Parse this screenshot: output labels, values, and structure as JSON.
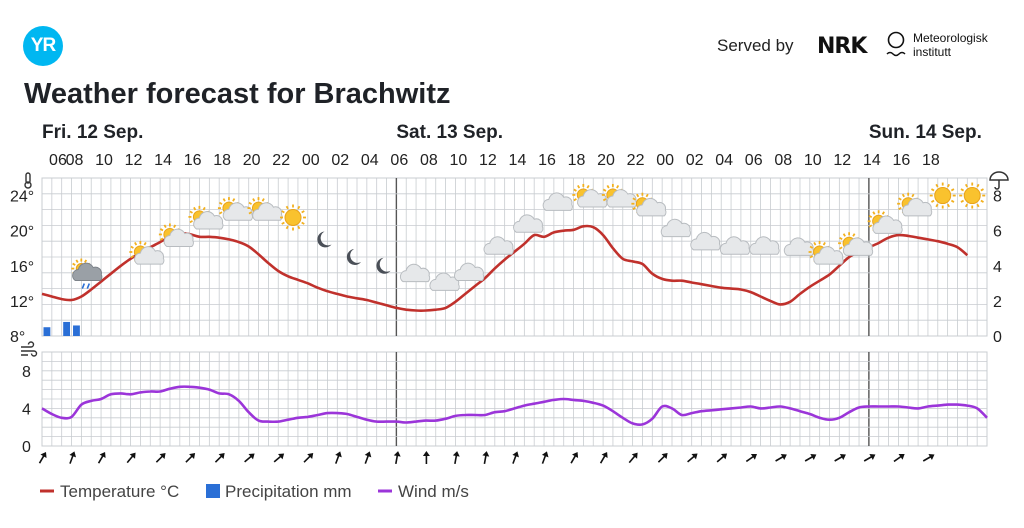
{
  "header": {
    "logo_text": "YR",
    "served_by": "Served by",
    "nrk": "NRK",
    "met_line1": "Meteorologisk",
    "met_line2": "institutt"
  },
  "page_title": "Weather forecast for Brachwitz",
  "colors": {
    "temperature": "#c0312c",
    "precipitation": "#2a6fd6",
    "wind": "#9b35d9",
    "grid": "#c8ccd0"
  },
  "chart_data": {
    "type": "line",
    "day_labels": [
      {
        "label": "Fri. 12 Sep.",
        "hour_index": 0
      },
      {
        "label": "Sat. 13 Sep.",
        "hour_index": 18
      },
      {
        "label": "Sun. 14 Sep.",
        "hour_index": 42
      }
    ],
    "x_tick_labels": [
      "06",
      "08",
      "10",
      "12",
      "14",
      "16",
      "18",
      "20",
      "22",
      "00",
      "02",
      "04",
      "06",
      "08",
      "10",
      "12",
      "14",
      "16",
      "18",
      "20",
      "22",
      "00",
      "02",
      "04",
      "06",
      "08",
      "10",
      "12",
      "14",
      "16",
      "18"
    ],
    "hours_from_start": [
      0,
      1,
      2,
      3,
      4,
      5,
      6,
      7,
      8,
      9,
      10,
      11,
      12,
      13,
      14,
      15,
      16,
      17,
      18,
      19,
      20,
      21,
      22,
      23,
      24,
      25,
      26,
      27,
      28,
      29,
      30,
      31,
      32,
      33,
      34,
      35,
      36,
      37,
      38,
      39,
      40,
      41,
      42,
      43,
      44,
      45,
      46,
      47,
      48,
      49,
      50,
      51,
      52,
      53,
      54,
      55,
      56,
      57,
      58,
      59,
      60,
      61,
      62,
      63,
      64,
      65,
      66,
      67,
      68,
      69,
      70,
      71,
      72,
      73,
      74,
      75,
      76,
      77,
      78,
      79,
      80,
      81,
      82,
      83,
      84,
      85,
      86,
      87,
      88,
      89,
      90,
      91,
      92,
      93,
      94,
      95,
      96
    ],
    "temperature": {
      "label": "Temperature °C",
      "ylim": [
        8,
        26
      ],
      "yticks": [
        8,
        12,
        16,
        20,
        24
      ],
      "tick_suffix": "°",
      "values": [
        12.8,
        12.5,
        12.2,
        12.1,
        12.5,
        13.3,
        14.2,
        15.1,
        16.0,
        16.8,
        17.5,
        18.1,
        18.7,
        19.3,
        19.7,
        19.6,
        19.3,
        19.3,
        19.2,
        19.0,
        18.7,
        18.2,
        17.3,
        16.3,
        15.4,
        14.8,
        14.4,
        14.0,
        13.5,
        13.1,
        12.8,
        12.5,
        12.3,
        12.1,
        11.8,
        11.5,
        11.2,
        11.0,
        10.9,
        10.9,
        11.0,
        11.2,
        11.9,
        12.8,
        13.7,
        14.6,
        15.7,
        16.7,
        17.6,
        18.5,
        19.5,
        19.3,
        19.8,
        20.0,
        20.1,
        20.5,
        20.4,
        19.5,
        18.0,
        16.8,
        16.5,
        16.2,
        15.1,
        14.5,
        14.3,
        14.3,
        14.1,
        13.9,
        13.7,
        13.5,
        13.4,
        13.3,
        13.0,
        12.5,
        12.0,
        11.6,
        11.9,
        12.8,
        13.6,
        14.3,
        15.0,
        16.0,
        17.0,
        17.6,
        18.1,
        18.6,
        19.2,
        19.5,
        19.4,
        19.2,
        19.0,
        18.8,
        18.5,
        18.1,
        17.2
      ]
    },
    "precipitation": {
      "label": "Precipitation mm",
      "ylim": [
        0,
        9
      ],
      "yticks": [
        0,
        2,
        4,
        6,
        8
      ],
      "bars": [
        {
          "hour": 0,
          "value": 0.5
        },
        {
          "hour": 1,
          "value": 0
        },
        {
          "hour": 2,
          "value": 0.8
        },
        {
          "hour": 3,
          "value": 0.6
        }
      ]
    },
    "wind": {
      "label": "Wind m/s",
      "ylim": [
        0,
        10
      ],
      "yticks": [
        0,
        4,
        8
      ],
      "values": [
        4.0,
        3.4,
        3.0,
        3.1,
        4.4,
        4.8,
        5.0,
        5.5,
        5.6,
        5.5,
        5.7,
        5.8,
        5.8,
        6.1,
        6.3,
        6.3,
        6.2,
        6.0,
        5.6,
        5.5,
        4.8,
        3.6,
        2.7,
        2.6,
        2.6,
        2.8,
        3.0,
        3.1,
        3.3,
        3.5,
        3.5,
        3.4,
        3.1,
        2.8,
        2.6,
        2.6,
        2.6,
        2.5,
        2.6,
        2.7,
        2.7,
        2.9,
        3.2,
        3.3,
        3.3,
        3.3,
        3.6,
        3.7,
        4.0,
        4.3,
        4.5,
        4.7,
        4.9,
        5.0,
        4.9,
        4.8,
        4.6,
        4.3,
        3.7,
        3.0,
        2.4,
        2.3,
        2.9,
        4.2,
        4.0,
        3.3,
        3.5,
        3.7,
        3.8,
        3.9,
        4.0,
        4.1,
        4.2,
        4.0,
        4.1,
        4.2,
        4.0,
        3.7,
        3.4,
        3.0,
        2.8,
        3.0,
        3.6,
        4.1,
        4.2,
        4.2,
        4.2,
        4.2,
        4.1,
        4.0,
        4.2,
        4.3,
        4.4,
        4.4,
        4.3,
        4.0,
        3.0
      ]
    },
    "wind_arrow_rotation_deg": [
      30,
      20,
      30,
      40,
      45,
      45,
      45,
      50,
      50,
      45,
      20,
      20,
      10,
      0,
      10,
      10,
      20,
      20,
      30,
      30,
      40,
      45,
      50,
      50,
      55,
      60,
      60,
      60,
      60,
      55,
      60
    ],
    "weather_symbols": [
      {
        "hour": 1,
        "icon": "cloud-rain-sun-icon",
        "temp": 15
      },
      {
        "hour": 3,
        "icon": "partly-cloudy-icon",
        "temp": 17
      },
      {
        "hour": 4,
        "icon": "partly-cloudy-icon",
        "temp": 19
      },
      {
        "hour": 5,
        "icon": "partly-cloudy-icon",
        "temp": 21
      },
      {
        "hour": 6,
        "icon": "partly-cloudy-icon",
        "temp": 22
      },
      {
        "hour": 7,
        "icon": "partly-cloudy-icon",
        "temp": 22
      },
      {
        "hour": 8,
        "icon": "sun-icon",
        "temp": 21.5
      },
      {
        "hour": 9,
        "icon": "moon-icon",
        "temp": 19
      },
      {
        "hour": 10,
        "icon": "moon-icon",
        "temp": 17
      },
      {
        "hour": 11,
        "icon": "moon-icon",
        "temp": 16
      },
      {
        "hour": 12,
        "icon": "moon-cloud-icon",
        "temp": 15
      },
      {
        "hour": 13,
        "icon": "moon-cloud-icon",
        "temp": 14
      },
      {
        "hour": 14,
        "icon": "cloud-icon",
        "temp": 15
      },
      {
        "hour": 15,
        "icon": "cloud-icon",
        "temp": 18
      },
      {
        "hour": 16,
        "icon": "cloud-icon",
        "temp": 20.5
      },
      {
        "hour": 17,
        "icon": "cloud-icon",
        "temp": 23
      },
      {
        "hour": 18,
        "icon": "partly-cloudy-icon",
        "temp": 23.5
      },
      {
        "hour": 19,
        "icon": "partly-cloudy-icon",
        "temp": 23.5
      },
      {
        "hour": 20,
        "icon": "partly-cloudy-icon",
        "temp": 22.5
      },
      {
        "hour": 21,
        "icon": "cloud-icon",
        "temp": 20
      },
      {
        "hour": 22,
        "icon": "cloud-icon",
        "temp": 18.5
      },
      {
        "hour": 23,
        "icon": "cloud-icon",
        "temp": 18
      },
      {
        "hour": 24,
        "icon": "cloud-icon",
        "temp": 18
      },
      {
        "hour": 25,
        "icon": "moon-cloud-icon",
        "temp": 18
      },
      {
        "hour": 26,
        "icon": "partly-cloudy-icon",
        "temp": 17
      },
      {
        "hour": 27,
        "icon": "partly-cloudy-icon",
        "temp": 18
      },
      {
        "hour": 28,
        "icon": "partly-cloudy-icon",
        "temp": 20.5
      },
      {
        "hour": 29,
        "icon": "partly-cloudy-icon",
        "temp": 22.5
      },
      {
        "hour": 30,
        "icon": "sun-icon",
        "temp": 24
      },
      {
        "hour": 31,
        "icon": "sun-icon",
        "temp": 24
      }
    ],
    "legend": [
      "Temperature °C",
      "Precipitation mm",
      "Wind m/s"
    ]
  }
}
